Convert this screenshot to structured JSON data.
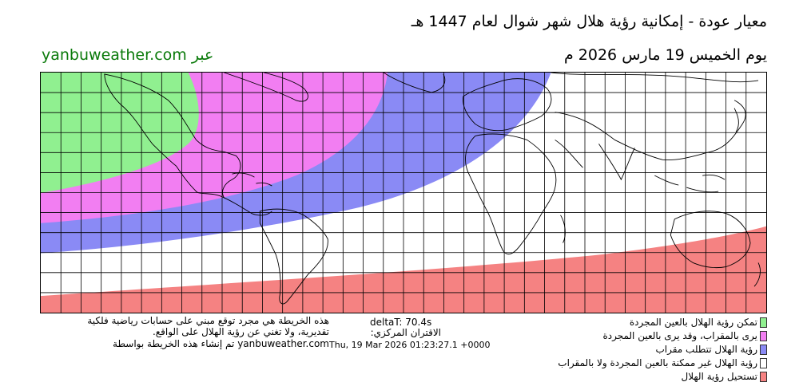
{
  "header": {
    "title": "معيار عودة - إمكانية رؤية هلال شهر شوال لعام 1447 هـ",
    "date": "يوم الخميس 19 مارس 2026 م",
    "site": "yanbuweather.com عبر"
  },
  "map": {
    "grid_lon_step_deg": 10,
    "grid_lat_step_deg": 10,
    "lon_range": [
      -180,
      180
    ],
    "lat_range": [
      -60,
      60
    ]
  },
  "zone_colors": {
    "green": "#90f090",
    "magenta": "#f27ef2",
    "blue": "#8a8af5",
    "white": "#ffffff",
    "red": "#f58282"
  },
  "footer": {
    "disclaimer_1": "هذه الخريطة هي مجرد توقع مبني على حسابات رياضية فلكية",
    "disclaimer_2": "تقديرية، ولا تغني عن رؤية الهلال على الواقع.",
    "credit": "yanbuweather.com  تم إنشاء هذه الخريطة بواسطة",
    "deltat": "deltaT: 70.4s",
    "conjunction_label": "الاقتران المركزي:",
    "conjunction_time": "Thu, 19 Mar 2026 01:23:27.1 +0000"
  },
  "legend": [
    {
      "label": "تمكن رؤية الهلال بالعين المجردة",
      "color": "#90f090"
    },
    {
      "label": "يرى بالمقراب، وقد يرى بالعين المجردة",
      "color": "#f27ef2"
    },
    {
      "label": "رؤية الهلال تتطلب مقراب",
      "color": "#8a8af5"
    },
    {
      "label": "رؤية الهلال غير ممكنة بالعين المجردة ولا بالمقراب",
      "color": "#ffffff"
    },
    {
      "label": "تستحيل رؤية الهلال",
      "color": "#f58282"
    }
  ]
}
